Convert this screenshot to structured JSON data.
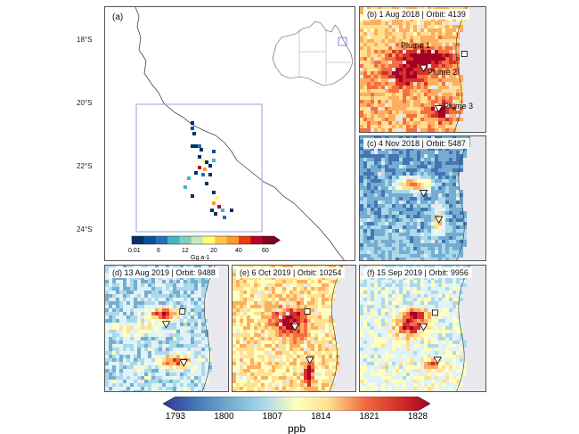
{
  "panel_a": {
    "label": "(a)",
    "lat_labels": [
      "18°S",
      "20°S",
      "22°S",
      "24°S"
    ],
    "colorbar": {
      "ticks": [
        "0.01",
        "6",
        "12",
        "20",
        "40",
        "60"
      ],
      "unit": "Gg a-1",
      "colors": [
        "#08306b",
        "#08519c",
        "#2171b5",
        "#41b6c4",
        "#7fcdbb",
        "#c7e9b4",
        "#ffff66",
        "#fec44f",
        "#fe9929",
        "#ec3b14",
        "#bd0026",
        "#800026"
      ]
    }
  },
  "panels": [
    {
      "id": "b",
      "label": "(b) 1 Aug 2018 | Orbit: 4139"
    },
    {
      "id": "c",
      "label": "(c) 4 Nov 2018 | Orbit: 5487"
    },
    {
      "id": "d",
      "label": "(d) 13 Aug 2019 | Orbit: 9488"
    },
    {
      "id": "e",
      "label": "(e) 6 Oct 2019 | Orbit: 10254"
    },
    {
      "id": "f",
      "label": "(f) 15 Sep 2019 | Orbit: 9956"
    }
  ],
  "plume_labels": [
    "Plume 1",
    "Plume 2",
    "Plume 3"
  ],
  "colorbar": {
    "ticks": [
      "1793",
      "1800",
      "1807",
      "1814",
      "1821",
      "1828"
    ],
    "unit": "ppb",
    "range": [
      1793,
      1828
    ]
  }
}
